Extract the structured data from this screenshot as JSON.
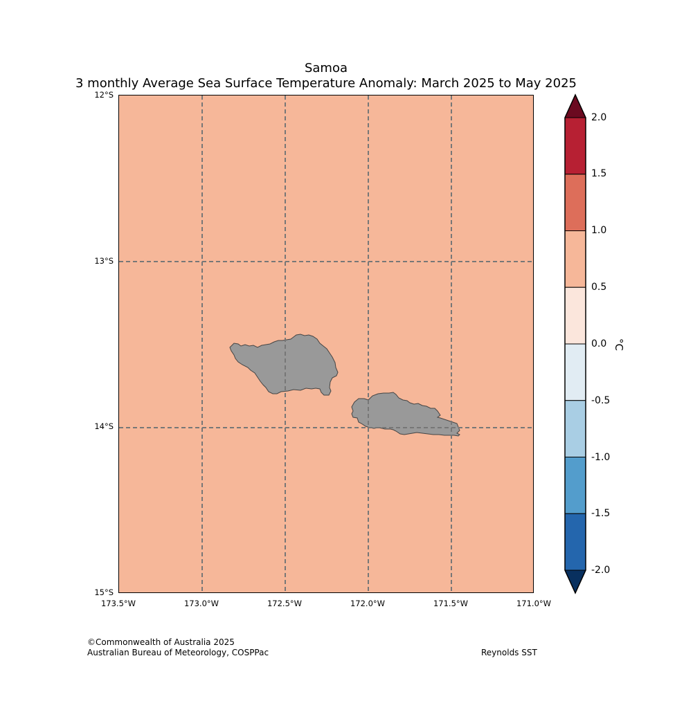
{
  "title": {
    "line1": "Samoa",
    "line2": "3 monthly Average Sea Surface Temperature Anomaly: March 2025 to May 2025"
  },
  "map": {
    "ocean_color": "#f6b799",
    "land_color": "#999999",
    "coastline_color": "#444444",
    "grid_color": "#777777",
    "lon_range": [
      -173.5,
      -171.0
    ],
    "lat_range": [
      -15.0,
      -12.0
    ],
    "lat_labels": [
      "12°S",
      "13°S",
      "14°S",
      "15°S"
    ],
    "lon_labels": [
      "173.5°W",
      "173.0°W",
      "172.5°W",
      "172.0°W",
      "171.5°W",
      "171.0°W"
    ],
    "islands": [
      "Savai'i",
      "Upolu"
    ]
  },
  "colorbar": {
    "unit": "°C",
    "ticks": [
      "2.0",
      "1.5",
      "1.0",
      "0.5",
      "0.0",
      "-0.5",
      "-1.0",
      "-1.5",
      "-2.0"
    ],
    "bins": [
      {
        "from": 2.0,
        "to": null,
        "color": "#6b0a20"
      },
      {
        "from": 1.5,
        "to": 2.0,
        "color": "#b72033"
      },
      {
        "from": 1.0,
        "to": 1.5,
        "color": "#dd6e5a"
      },
      {
        "from": 0.5,
        "to": 1.0,
        "color": "#f6b799"
      },
      {
        "from": 0.0,
        "to": 0.5,
        "color": "#fbe6dc"
      },
      {
        "from": -0.5,
        "to": 0.0,
        "color": "#e1ecf3"
      },
      {
        "from": -1.0,
        "to": -0.5,
        "color": "#a9cee4"
      },
      {
        "from": -1.5,
        "to": -1.0,
        "color": "#539dcc"
      },
      {
        "from": -2.0,
        "to": -1.5,
        "color": "#2466ad"
      },
      {
        "from": null,
        "to": -2.0,
        "color": "#08305f"
      }
    ]
  },
  "footer": {
    "copyright": "©Commonwealth of Australia 2025",
    "bureau": "Australian Bureau of Meteorology, COSPPac",
    "dataset": "Reynolds SST"
  }
}
